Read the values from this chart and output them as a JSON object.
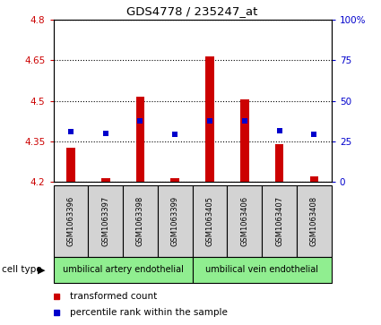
{
  "title": "GDS4778 / 235247_at",
  "samples": [
    "GSM1063396",
    "GSM1063397",
    "GSM1063398",
    "GSM1063399",
    "GSM1063405",
    "GSM1063406",
    "GSM1063407",
    "GSM1063408"
  ],
  "bar_values": [
    4.325,
    4.215,
    4.515,
    4.215,
    4.665,
    4.505,
    4.34,
    4.22
  ],
  "percentile_values": [
    4.385,
    4.38,
    4.425,
    4.375,
    4.425,
    4.425,
    4.39,
    4.375
  ],
  "ylim_left": [
    4.2,
    4.8
  ],
  "ylim_right": [
    0,
    100
  ],
  "yticks_left": [
    4.2,
    4.35,
    4.5,
    4.65,
    4.8
  ],
  "yticks_right": [
    0,
    25,
    50,
    75,
    100
  ],
  "ytick_labels_left": [
    "4.2",
    "4.35",
    "4.5",
    "4.65",
    "4.8"
  ],
  "ytick_labels_right": [
    "0",
    "25",
    "50",
    "75",
    "100%"
  ],
  "bar_color": "#cc0000",
  "percentile_color": "#0000cc",
  "bar_bottom": 4.2,
  "bar_width": 0.25,
  "cell_type_groups": [
    {
      "label": "umbilical artery endothelial",
      "start": 0,
      "end": 3
    },
    {
      "label": "umbilical vein endothelial",
      "start": 4,
      "end": 7
    }
  ],
  "cell_type_label": "cell type",
  "group_bg_color": "#90ee90",
  "tick_bg_color": "#d3d3d3",
  "legend_red_label": "transformed count",
  "legend_blue_label": "percentile rank within the sample"
}
